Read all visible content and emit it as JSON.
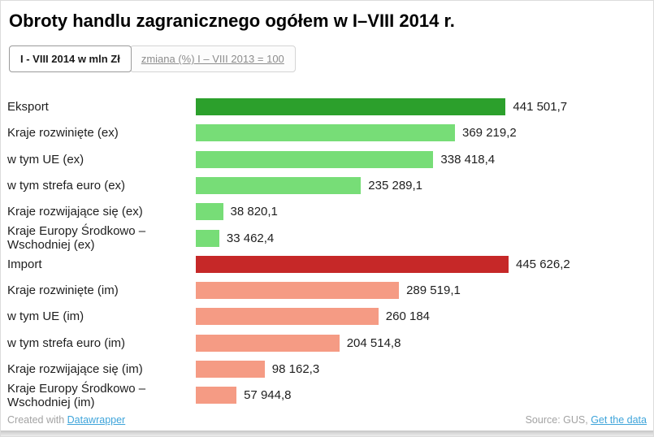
{
  "title": "Obroty handlu zagranicznego ogółem w I–VIII 2014 r.",
  "tabs": [
    {
      "label": "I - VIII 2014 w mln Zł",
      "active": true
    },
    {
      "label": "zmiana (%) I – VIII 2013 = 100",
      "active": false
    }
  ],
  "footer": {
    "created_prefix": "Created with ",
    "created_link": "Datawrapper",
    "source_prefix": "Source: GUS, ",
    "source_link": "Get the data"
  },
  "colors": {
    "export_total": "#2ca02c",
    "export_detail": "#77dd77",
    "import_total": "#c62828",
    "import_detail": "#f59b84"
  },
  "chart_data": {
    "type": "bar",
    "orientation": "horizontal",
    "title": "Obroty handlu zagranicznego ogółem w I–VIII 2014 r.",
    "unit": "mln Zł",
    "max_value": 445626.2,
    "rows": [
      {
        "label": "Eksport",
        "value": 441501.7,
        "value_label": "441 501,7",
        "color": "#2ca02c"
      },
      {
        "label": "Kraje rozwinięte (ex)",
        "value": 369219.2,
        "value_label": "369 219,2",
        "color": "#77dd77"
      },
      {
        "label": "w tym UE (ex)",
        "value": 338418.4,
        "value_label": "338 418,4",
        "color": "#77dd77"
      },
      {
        "label": "w tym strefa euro (ex)",
        "value": 235289.1,
        "value_label": "235 289,1",
        "color": "#77dd77"
      },
      {
        "label": "Kraje rozwijające się (ex)",
        "value": 38820.1,
        "value_label": "38 820,1",
        "color": "#77dd77"
      },
      {
        "label": "Kraje Europy Środkowo – Wschodniej (ex)",
        "value": 33462.4,
        "value_label": "33 462,4",
        "color": "#77dd77"
      },
      {
        "label": "Import",
        "value": 445626.2,
        "value_label": "445 626,2",
        "color": "#c62828"
      },
      {
        "label": "Kraje rozwinięte (im)",
        "value": 289519.1,
        "value_label": "289 519,1",
        "color": "#f59b84"
      },
      {
        "label": "w tym UE (im)",
        "value": 260184,
        "value_label": "260 184",
        "color": "#f59b84"
      },
      {
        "label": "w tym strefa euro (im)",
        "value": 204514.8,
        "value_label": "204 514,8",
        "color": "#f59b84"
      },
      {
        "label": "Kraje rozwijające się (im)",
        "value": 98162.3,
        "value_label": "98 162,3",
        "color": "#f59b84"
      },
      {
        "label": "Kraje Europy Środkowo – Wschodniej (im)",
        "value": 57944.8,
        "value_label": "57 944,8",
        "color": "#f59b84"
      }
    ]
  }
}
